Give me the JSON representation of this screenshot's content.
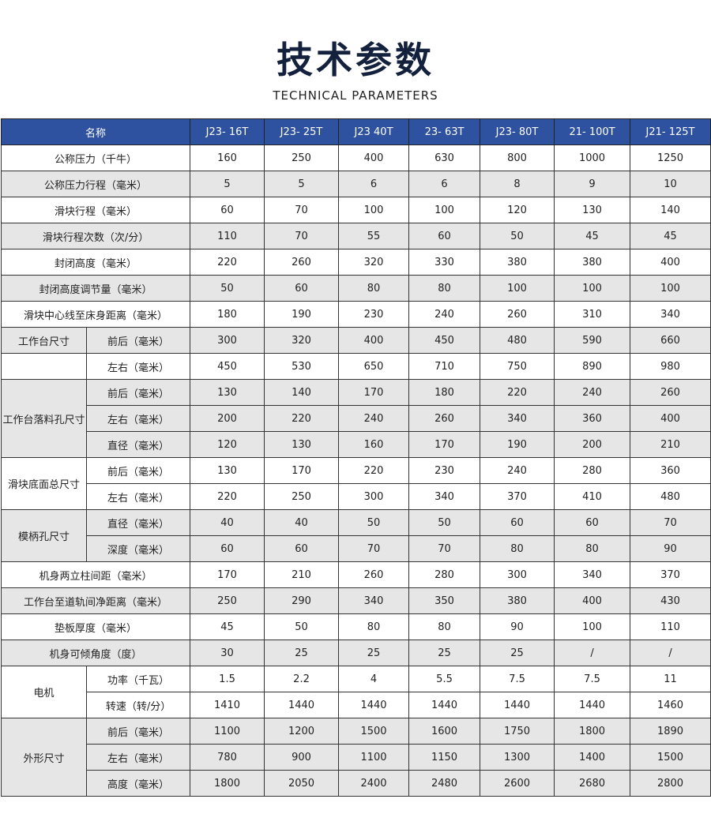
{
  "title": "技术参数",
  "subtitle": "TECHNICAL PARAMETERS",
  "header": [
    "名称",
    "J23- 16T",
    "J23- 25T",
    "J23 40T",
    "23- 63T",
    "J23- 80T",
    "21- 100T",
    "J21- 125T"
  ],
  "rows": [
    {
      "label": "公称压力（千牛）",
      "values": [
        "160",
        "250",
        "400",
        "630",
        "800",
        "1000",
        "1250"
      ],
      "shade": false
    },
    {
      "label": "公称压力行程（毫米）",
      "values": [
        "5",
        "5",
        "6",
        "6",
        "8",
        "9",
        "10"
      ],
      "shade": true
    },
    {
      "label": "滑块行程（毫米）",
      "values": [
        "60",
        "70",
        "100",
        "100",
        "120",
        "130",
        "140"
      ],
      "shade": false
    },
    {
      "label": "滑块行程次数（次/分）",
      "values": [
        "110",
        "70",
        "55",
        "60",
        "50",
        "45",
        "45"
      ],
      "shade": true
    },
    {
      "label": "封闭高度（毫米）",
      "values": [
        "220",
        "260",
        "320",
        "330",
        "380",
        "380",
        "400"
      ],
      "shade": false
    },
    {
      "label": "封闭高度调节量（毫米）",
      "values": [
        "50",
        "60",
        "80",
        "80",
        "100",
        "100",
        "100"
      ],
      "shade": true
    },
    {
      "label": "滑块中心线至床身距离（毫米）",
      "values": [
        "180",
        "190",
        "230",
        "240",
        "260",
        "310",
        "340"
      ],
      "shade": false
    },
    {
      "group": "工作台尺寸",
      "sub": "前后（毫米）",
      "values": [
        "300",
        "320",
        "400",
        "450",
        "480",
        "590",
        "660"
      ],
      "shade": true
    },
    {
      "group": "",
      "sub": "左右（毫米）",
      "values": [
        "450",
        "530",
        "650",
        "710",
        "750",
        "890",
        "980"
      ],
      "shade": false
    },
    {
      "group": "工作台落料孔尺寸",
      "span": 3,
      "sub": "前后（毫米）",
      "values": [
        "130",
        "140",
        "170",
        "180",
        "220",
        "240",
        "260"
      ],
      "shade": true
    },
    {
      "sub": "左右（毫米）",
      "values": [
        "200",
        "220",
        "240",
        "260",
        "340",
        "360",
        "400"
      ],
      "shade": true
    },
    {
      "sub": "直径（毫米）",
      "values": [
        "120",
        "130",
        "160",
        "170",
        "190",
        "200",
        "210"
      ],
      "shade": true
    },
    {
      "group": "滑块底面总尺寸",
      "span": 2,
      "sub": "前后（毫米）",
      "values": [
        "130",
        "170",
        "220",
        "230",
        "240",
        "280",
        "360"
      ],
      "shade": false
    },
    {
      "sub": "左右（毫米）",
      "values": [
        "220",
        "250",
        "300",
        "340",
        "370",
        "410",
        "480"
      ],
      "shade": false
    },
    {
      "group": "模柄孔尺寸",
      "span": 2,
      "sub": "直径（毫米）",
      "values": [
        "40",
        "40",
        "50",
        "50",
        "60",
        "60",
        "70"
      ],
      "shade": true
    },
    {
      "sub": "深度（毫米）",
      "values": [
        "60",
        "60",
        "70",
        "70",
        "80",
        "80",
        "90"
      ],
      "shade": true
    },
    {
      "label": "机身两立柱间距（毫米）",
      "values": [
        "170",
        "210",
        "260",
        "280",
        "300",
        "340",
        "370"
      ],
      "shade": false
    },
    {
      "label": "工作台至道轨间净距离（毫米）",
      "values": [
        "250",
        "290",
        "340",
        "350",
        "380",
        "400",
        "430"
      ],
      "shade": true
    },
    {
      "label": "垫板厚度（毫米）",
      "values": [
        "45",
        "50",
        "80",
        "80",
        "90",
        "100",
        "110"
      ],
      "shade": false
    },
    {
      "label": "机身可倾角度（度）",
      "values": [
        "30",
        "25",
        "25",
        "25",
        "25",
        "/",
        "/"
      ],
      "shade": true
    },
    {
      "group": "电机",
      "span": 2,
      "sub": "功率（千瓦）",
      "values": [
        "1.5",
        "2.2",
        "4",
        "5.5",
        "7.5",
        "7.5",
        "11"
      ],
      "shade": false
    },
    {
      "sub": "转速（转/分）",
      "values": [
        "1410",
        "1440",
        "1440",
        "1440",
        "1440",
        "1440",
        "1460"
      ],
      "shade": false
    },
    {
      "group": "外形尺寸",
      "span": 3,
      "sub": "前后（毫米）",
      "values": [
        "1100",
        "1200",
        "1500",
        "1600",
        "1750",
        "1800",
        "1890"
      ],
      "shade": true
    },
    {
      "sub": "左右（毫米）",
      "values": [
        "780",
        "900",
        "1100",
        "1150",
        "1300",
        "1400",
        "1500"
      ],
      "shade": true
    },
    {
      "sub": "高度（毫米）",
      "values": [
        "1800",
        "2050",
        "2400",
        "2480",
        "2600",
        "2680",
        "2800"
      ],
      "shade": true
    }
  ],
  "colors": {
    "header_bg": "#2f52a0",
    "title": "#14213d",
    "shade": "#e6e6e6"
  }
}
